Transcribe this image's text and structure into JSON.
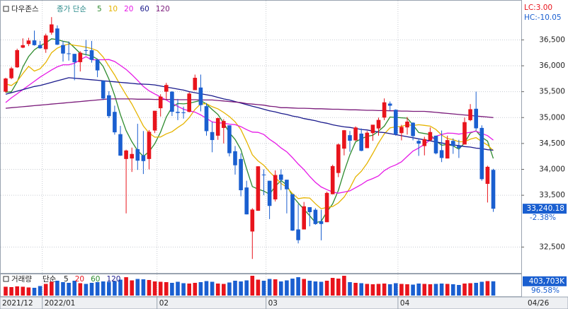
{
  "chart_data": {
    "type": "candlestick",
    "title": "다우존스",
    "ma_label": "종가 단순",
    "lc_label": "LC:3.00",
    "hc_label": "HC:-10.05",
    "last_price_label": "33,240.18",
    "change_label": "-2.38%",
    "up_color": "#e8141c",
    "down_color": "#1a5fd0",
    "grid": true,
    "categories": [
      "2021/12",
      null,
      null,
      null,
      null,
      null,
      null,
      "2022/01",
      null,
      null,
      null,
      null,
      null,
      null,
      null,
      null,
      null,
      null,
      null,
      null,
      null,
      null,
      null,
      null,
      null,
      null,
      null,
      "02",
      null,
      null,
      null,
      null,
      null,
      null,
      null,
      null,
      null,
      null,
      null,
      null,
      null,
      null,
      null,
      null,
      null,
      null,
      "03",
      null,
      null,
      null,
      null,
      null,
      null,
      null,
      null,
      null,
      null,
      null,
      null,
      null,
      null,
      null,
      null,
      null,
      null,
      null,
      null,
      null,
      null,
      "04",
      null,
      null,
      null,
      null,
      null,
      null,
      null,
      null,
      null,
      null,
      null,
      null,
      null,
      null,
      null,
      "04/26"
    ],
    "open": [
      35500,
      35760,
      35970,
      36350,
      36420,
      36490,
      36400,
      36320,
      36640,
      36720,
      36400,
      36240,
      36230,
      36070,
      36300,
      36300,
      36120,
      35710,
      35430,
      35110,
      34680,
      34200,
      34210,
      34390,
      34270,
      34200,
      34750,
      35180,
      35500,
      35500,
      35110,
      35100,
      35110,
      35530,
      35580,
      35220,
      34720,
      34650,
      34800,
      34850,
      34350,
      34200,
      33650,
      32800,
      33200,
      33900,
      33780,
      33420,
      33900,
      33800,
      33520,
      32840,
      32840,
      33270,
      33220,
      33000,
      32980,
      33520,
      33930,
      34400,
      34660,
      34560,
      34690,
      34410,
      34700,
      34790,
      35000,
      35270,
      35150,
      34700,
      34810,
      34900,
      34550,
      34450,
      34560,
      34650,
      34370,
      34210,
      34550,
      34450,
      34480,
      34950,
      35170,
      34800,
      33720,
      33990
    ],
    "high": [
      35770,
      35980,
      36330,
      36530,
      36540,
      36680,
      36480,
      36620,
      36940,
      36780,
      36480,
      36470,
      36230,
      36280,
      36500,
      36480,
      36120,
      35720,
      35510,
      35230,
      34840,
      34380,
      34420,
      34880,
      34740,
      34760,
      35130,
      35450,
      35670,
      35510,
      35360,
      35210,
      35490,
      35830,
      35830,
      35280,
      34920,
      35000,
      34970,
      34850,
      34450,
      34310,
      33780,
      33250,
      34060,
      34000,
      33780,
      33980,
      34000,
      33800,
      33520,
      33330,
      33370,
      33270,
      33250,
      33220,
      33570,
      34090,
      34500,
      34760,
      34740,
      34830,
      34790,
      34740,
      34860,
      35000,
      35370,
      35310,
      35160,
      34860,
      35010,
      34910,
      34600,
      34630,
      34810,
      34650,
      34750,
      34650,
      34600,
      34570,
      35000,
      35260,
      35500,
      34850,
      34070,
      34010
    ],
    "low": [
      35480,
      35740,
      35960,
      36340,
      36380,
      36390,
      36330,
      36250,
      36600,
      36400,
      36080,
      36100,
      35720,
      35890,
      36200,
      36060,
      35780,
      35340,
      34990,
      34670,
      34260,
      33150,
      33950,
      33990,
      33910,
      34000,
      34700,
      35020,
      35340,
      35030,
      34950,
      34980,
      35100,
      35530,
      35120,
      34650,
      34330,
      34570,
      34500,
      34250,
      33900,
      33480,
      33130,
      32270,
      33200,
      33500,
      33040,
      33380,
      33600,
      33150,
      32810,
      32570,
      32840,
      32900,
      32930,
      32630,
      32980,
      33520,
      33850,
      34270,
      34340,
      34550,
      34350,
      34410,
      34550,
      34650,
      34950,
      35140,
      34650,
      34560,
      34670,
      34560,
      34260,
      34270,
      34540,
      34290,
      34140,
      34210,
      34300,
      34220,
      34480,
      34930,
      34760,
      33780,
      33360,
      33180
    ],
    "close": [
      35754,
      35950,
      36302,
      36398,
      36488,
      36398,
      36338,
      36585,
      36799,
      36407,
      36236,
      36231,
      36068,
      36252,
      36290,
      36114,
      35911,
      35368,
      35028,
      34715,
      34265,
      34364,
      34297,
      34168,
      34160,
      34725,
      35131,
      35405,
      35629,
      35111,
      35089,
      35091,
      35463,
      35768,
      35241,
      34738,
      34566,
      34989,
      34934,
      34312,
      34079,
      33597,
      33131,
      33224,
      34059,
      33893,
      33294,
      33891,
      33795,
      33615,
      32818,
      32633,
      33286,
      33174,
      32944,
      32945,
      33545,
      34063,
      34481,
      34755,
      34553,
      34808,
      34358,
      34708,
      34862,
      34955,
      35294,
      35229,
      34678,
      34818,
      34922,
      34642,
      34497,
      34584,
      34721,
      34309,
      34220,
      34565,
      34451,
      34412,
      34912,
      35161,
      34793,
      33811,
      34049,
      33240.18
    ],
    "series": [
      {
        "name": "5",
        "color": "#2e8b2e",
        "values": [
          35488,
          35499,
          35686,
          35979,
          36178,
          36307,
          36385,
          36441,
          36522,
          36505,
          36473,
          36452,
          36348,
          36239,
          36215,
          36191,
          36127,
          35987,
          35742,
          35427,
          35057,
          34748,
          34534,
          34362,
          34251,
          34343,
          34496,
          34718,
          35010,
          35200,
          35273,
          35265,
          35277,
          35304,
          35330,
          35260,
          35155,
          35060,
          34894,
          34708,
          34576,
          34382,
          34011,
          33669,
          33618,
          33581,
          33520,
          33672,
          33786,
          33698,
          33483,
          33350,
          33229,
          33105,
          32971,
          32996,
          33179,
          33334,
          33596,
          33958,
          34279,
          34532,
          34591,
          34636,
          34658,
          34738,
          34835,
          35010,
          35004,
          34995,
          34988,
          34858,
          34711,
          34693,
          34673,
          34551,
          34466,
          34480,
          34453,
          34391,
          34512,
          34700,
          34746,
          34618,
          34545,
          34211
        ]
      },
      {
        "name": "10",
        "color": "#e6b400",
        "values": [
          35650,
          35620,
          35700,
          35850,
          35990,
          35898,
          35942,
          36064,
          36251,
          36342,
          36390,
          36419,
          36395,
          36381,
          36360,
          36332,
          36290,
          36168,
          35991,
          35821,
          35624,
          35438,
          35261,
          35052,
          34839,
          34700,
          34622,
          34626,
          34686,
          34726,
          34808,
          34881,
          34998,
          35157,
          35265,
          35267,
          35210,
          35169,
          35099,
          35019,
          34918,
          34769,
          34536,
          34282,
          34163,
          34079,
          33951,
          33842,
          33728,
          33658,
          33532,
          33435,
          33451,
          33446,
          33335,
          33240,
          33265,
          33282,
          33351,
          33465,
          33638,
          33856,
          33963,
          34116,
          34308,
          34509,
          34684,
          34801,
          34820,
          34827,
          34863,
          34847,
          34861,
          34849,
          34834,
          34770,
          34662,
          34596,
          34573,
          34532,
          34532,
          34583,
          34613,
          34536,
          34468,
          34362
        ]
      },
      {
        "name": "20",
        "color": "#e619e6",
        "values": [
          35290,
          35380,
          35460,
          35540,
          35620,
          35700,
          35780,
          35850,
          35920,
          35980,
          36020,
          36020,
          36048,
          36116,
          36175,
          36115,
          36116,
          36116,
          36121,
          36082,
          36007,
          35929,
          35828,
          35717,
          35600,
          35516,
          35456,
          35397,
          35339,
          35274,
          35216,
          35160,
          35130,
          35105,
          35052,
          34984,
          34916,
          34898,
          34893,
          34873,
          34863,
          34825,
          34767,
          34720,
          34714,
          34673,
          34581,
          34506,
          34414,
          34339,
          34225,
          34102,
          33994,
          33864,
          33749,
          33660,
          33608,
          33562,
          33540,
          33562,
          33585,
          33646,
          33707,
          33781,
          33822,
          33875,
          33975,
          34042,
          34086,
          34146,
          34251,
          34352,
          34412,
          34483,
          34571,
          34640,
          34673,
          34699,
          34697,
          34680,
          34698,
          34715,
          34737,
          34693,
          34651,
          34566
        ]
      },
      {
        "name": "60",
        "color": "#1a1a8c",
        "values": [
          35450,
          35480,
          35510,
          35540,
          35570,
          35600,
          35620,
          35650,
          35680,
          35710,
          35740,
          35770,
          35760,
          35750,
          35740,
          35730,
          35720,
          35710,
          35700,
          35690,
          35680,
          35670,
          35660,
          35650,
          35645,
          35640,
          35630,
          35610,
          35590,
          35570,
          35550,
          35530,
          35500,
          35480,
          35460,
          35440,
          35420,
          35390,
          35360,
          35340,
          35310,
          35280,
          35250,
          35220,
          35190,
          35160,
          35130,
          35110,
          35080,
          35060,
          35030,
          35010,
          34980,
          34960,
          34940,
          34910,
          34890,
          34860,
          34840,
          34820,
          34810,
          34790,
          34770,
          34760,
          34740,
          34720,
          34710,
          34690,
          34670,
          34650,
          34630,
          34610,
          34590,
          34570,
          34550,
          34530,
          34510,
          34490,
          34470,
          34460,
          34440,
          34430,
          34410,
          34400,
          34380,
          34370
        ]
      },
      {
        "name": "120",
        "color": "#7a1a7a",
        "values": [
          35180,
          35190,
          35200,
          35210,
          35220,
          35230,
          35240,
          35250,
          35260,
          35270,
          35280,
          35290,
          35300,
          35310,
          35320,
          35330,
          35340,
          35350,
          35360,
          35360,
          35360,
          35360,
          35360,
          35355,
          35355,
          35355,
          35350,
          35350,
          35350,
          35350,
          35345,
          35345,
          35345,
          35345,
          35340,
          35340,
          35340,
          35330,
          35320,
          35310,
          35300,
          35290,
          35270,
          35260,
          35250,
          35240,
          35220,
          35210,
          35190,
          35190,
          35185,
          35180,
          35180,
          35175,
          35170,
          35170,
          35165,
          35160,
          35160,
          35155,
          35150,
          35150,
          35145,
          35140,
          35140,
          35135,
          35135,
          35130,
          35130,
          35125,
          35125,
          35120,
          35120,
          35120,
          35110,
          35100,
          35090,
          35080,
          35070,
          35060,
          35050,
          35040,
          35030,
          35020,
          35010,
          35000
        ]
      }
    ],
    "ylim": [
      32000,
      37270
    ],
    "yticks": [
      {
        "value": 32500,
        "label": "32,500"
      },
      {
        "value": 33500,
        "label": "33,500"
      },
      {
        "value": 34000,
        "label": "34,000"
      },
      {
        "value": 34500,
        "label": "34,500"
      },
      {
        "value": 35000,
        "label": "35,000"
      },
      {
        "value": 35500,
        "label": "35,500"
      },
      {
        "value": 36000,
        "label": "36,000"
      },
      {
        "value": 36500,
        "label": "36,500"
      }
    ],
    "volume": {
      "title": "거래량",
      "ma_label": "단순",
      "ma_names": [
        "5",
        "20",
        "60",
        "120"
      ],
      "ma_colors": [
        "#1a1a1a",
        "#e8141c",
        "#2e8b2e",
        "#1a1a8c"
      ],
      "value_label": "403,703K",
      "ratio_label": "96.58%",
      "ylim": [
        0,
        600000
      ],
      "values": [
        250000,
        240000,
        260000,
        250000,
        230000,
        220000,
        270000,
        330000,
        390000,
        420000,
        380000,
        360000,
        420000,
        350000,
        330000,
        360000,
        380000,
        400000,
        390000,
        410000,
        450000,
        520000,
        430000,
        470000,
        460000,
        440000,
        400000,
        390000,
        380000,
        360000,
        390000,
        350000,
        340000,
        360000,
        380000,
        410000,
        390000,
        340000,
        330000,
        370000,
        420000,
        400000,
        430000,
        560000,
        450000,
        420000,
        470000,
        460000,
        400000,
        430000,
        480000,
        520000,
        470000,
        420000,
        400000,
        390000,
        420000,
        500000,
        480000,
        560000,
        380000,
        360000,
        350000,
        330000,
        320000,
        330000,
        340000,
        320000,
        350000,
        330000,
        320000,
        310000,
        340000,
        330000,
        320000,
        330000,
        340000,
        330000,
        320000,
        300000,
        340000,
        350000,
        360000,
        390000,
        410000,
        403703
      ]
    }
  }
}
